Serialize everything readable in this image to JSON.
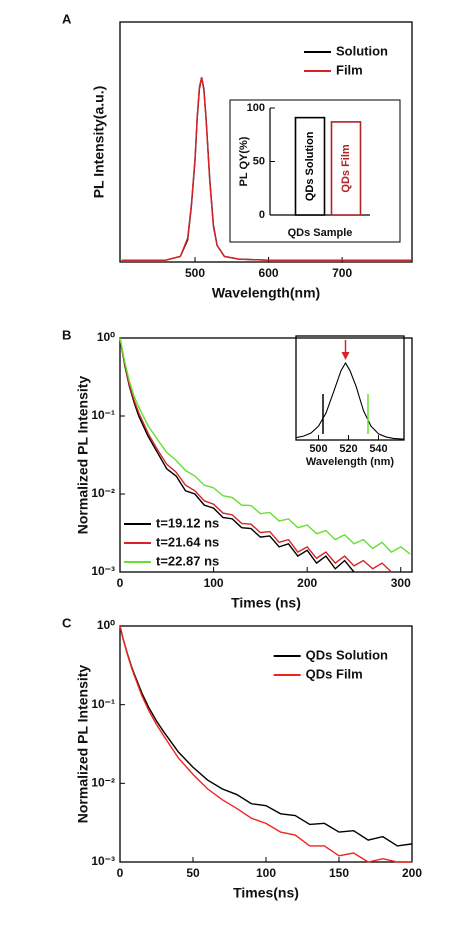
{
  "chart_data": [
    {
      "type": "line",
      "panel_label": "A",
      "xlabel": "Wavelength(nm)",
      "ylabel": "PL Intensity(a.u.)",
      "xlim": [
        398,
        795
      ],
      "xticks": [
        500,
        600,
        700
      ],
      "ylim": [
        0,
        1.3
      ],
      "legend": "upper right",
      "x": [
        400,
        460,
        480,
        490,
        495,
        500,
        503,
        506,
        509,
        512,
        515,
        520,
        525,
        530,
        540,
        560,
        600,
        700,
        795
      ],
      "series": [
        {
          "name": "Solution",
          "color": "#000000",
          "values": [
            0.01,
            0.01,
            0.03,
            0.12,
            0.3,
            0.55,
            0.78,
            0.94,
            1.0,
            0.94,
            0.78,
            0.45,
            0.2,
            0.09,
            0.03,
            0.015,
            0.01,
            0.01,
            0.01
          ]
        },
        {
          "name": "Film",
          "color": "#d8232a",
          "values": [
            0.01,
            0.01,
            0.03,
            0.13,
            0.31,
            0.56,
            0.79,
            0.95,
            1.0,
            0.93,
            0.77,
            0.44,
            0.19,
            0.09,
            0.03,
            0.015,
            0.01,
            0.01,
            0.01
          ]
        }
      ]
    },
    {
      "type": "bar",
      "xlabel": "QDs Sample",
      "ylabel": "PL QY(%)",
      "ylim": [
        0,
        100
      ],
      "yticks": [
        0,
        50,
        100
      ],
      "categories": [
        "QDs Solution",
        "QDs Film"
      ],
      "values": [
        91,
        87
      ],
      "colors": [
        "#000000",
        "#b0232a"
      ]
    },
    {
      "type": "line",
      "panel_label": "B",
      "xlabel": "Times (ns)",
      "ylabel": "Normalized PL Intensity",
      "log_y": true,
      "xlim": [
        0,
        312
      ],
      "xticks": [
        0,
        100,
        200,
        300
      ],
      "ylim": [
        0.001,
        1
      ],
      "yticks": [
        {
          "value": 0.001,
          "label": "10⁻³"
        },
        {
          "value": 0.01,
          "label": "10⁻²"
        },
        {
          "value": 0.1,
          "label": "10⁻¹"
        },
        {
          "value": 1,
          "label": "10⁰"
        }
      ],
      "legend": "lower left",
      "x": [
        0,
        5,
        10,
        15,
        20,
        30,
        40,
        50,
        60,
        70,
        80,
        90,
        100,
        110,
        120,
        130,
        140,
        150,
        160,
        170,
        180,
        190,
        200,
        210,
        220,
        230,
        240,
        250,
        260,
        270,
        280,
        290,
        300,
        310
      ],
      "series": [
        {
          "name": "t=19.12 ns",
          "color": "#000000",
          "values": [
            1,
            0.45,
            0.24,
            0.15,
            0.1,
            0.055,
            0.034,
            0.021,
            0.017,
            0.011,
            0.01,
            0.0072,
            0.0066,
            0.005,
            0.0048,
            0.0037,
            0.0036,
            0.0028,
            0.0029,
            0.0021,
            0.0023,
            0.0016,
            0.0019,
            0.0013,
            0.0016,
            0.0011,
            0.0014,
            0.001,
            null,
            null,
            null,
            null,
            null,
            null
          ]
        },
        {
          "name": "t=21.64 ns",
          "color": "#d8232a",
          "values": [
            1,
            0.47,
            0.25,
            0.16,
            0.11,
            0.06,
            0.037,
            0.024,
            0.019,
            0.013,
            0.011,
            0.0082,
            0.0074,
            0.0057,
            0.0054,
            0.0042,
            0.0041,
            0.0032,
            0.0033,
            0.0024,
            0.0026,
            0.0018,
            0.0021,
            0.0015,
            0.0018,
            0.0013,
            0.0016,
            0.0012,
            0.0014,
            0.0011,
            0.0013,
            0.001,
            null,
            null
          ]
        },
        {
          "name": "t=22.87 ns",
          "color": "#66e033",
          "values": [
            1,
            0.5,
            0.28,
            0.18,
            0.13,
            0.075,
            0.05,
            0.034,
            0.027,
            0.02,
            0.017,
            0.013,
            0.012,
            0.0095,
            0.009,
            0.0072,
            0.0071,
            0.0056,
            0.0058,
            0.0045,
            0.0048,
            0.0037,
            0.004,
            0.0031,
            0.0034,
            0.0026,
            0.003,
            0.0023,
            0.0026,
            0.002,
            0.0024,
            0.0018,
            0.0021,
            0.0017
          ]
        }
      ]
    },
    {
      "type": "line",
      "xlabel": "Wavelength (nm)",
      "xlim": [
        485,
        557
      ],
      "xticks": [
        500,
        520,
        540
      ],
      "ylim": [
        0,
        1.35
      ],
      "x": [
        485,
        490,
        495,
        500,
        505,
        510,
        515,
        518,
        521,
        525,
        530,
        535,
        540,
        545,
        550,
        557
      ],
      "series": [
        {
          "color": "#000000",
          "values": [
            0.03,
            0.05,
            0.09,
            0.18,
            0.35,
            0.62,
            0.9,
            1.0,
            0.9,
            0.7,
            0.38,
            0.18,
            0.08,
            0.04,
            0.02,
            0.01
          ]
        }
      ],
      "vlines": [
        {
          "x": 503,
          "color": "#000000"
        },
        {
          "x": 533,
          "color": "#66e033"
        }
      ],
      "arrow_x": 518,
      "arrow_color": "#d8232a"
    },
    {
      "type": "line",
      "panel_label": "C",
      "xlabel": "Times(ns)",
      "ylabel": "Normalized PL Intensity",
      "log_y": true,
      "xlim": [
        0,
        200
      ],
      "xticks": [
        0,
        50,
        100,
        150,
        200
      ],
      "ylim": [
        0.001,
        1
      ],
      "yticks": [
        {
          "value": 0.001,
          "label": "10⁻³"
        },
        {
          "value": 0.01,
          "label": "10⁻²"
        },
        {
          "value": 0.1,
          "label": "10⁻¹"
        },
        {
          "value": 1,
          "label": "10⁰"
        }
      ],
      "legend": "upper right",
      "x": [
        0,
        2,
        5,
        8,
        10,
        15,
        20,
        25,
        30,
        40,
        50,
        60,
        70,
        80,
        90,
        100,
        110,
        120,
        130,
        140,
        150,
        160,
        170,
        180,
        190,
        200
      ],
      "series": [
        {
          "name": "QDs Solution",
          "color": "#000000",
          "values": [
            1,
            0.7,
            0.45,
            0.3,
            0.24,
            0.14,
            0.09,
            0.062,
            0.045,
            0.025,
            0.016,
            0.011,
            0.0085,
            0.0072,
            0.0055,
            0.0052,
            0.0041,
            0.0039,
            0.003,
            0.0031,
            0.0024,
            0.0025,
            0.0019,
            0.0021,
            0.0016,
            0.0017
          ]
        },
        {
          "name": "QDs Film",
          "color": "#f0241c",
          "values": [
            1,
            0.7,
            0.44,
            0.29,
            0.23,
            0.13,
            0.082,
            0.056,
            0.04,
            0.021,
            0.013,
            0.0085,
            0.0062,
            0.0048,
            0.0036,
            0.0031,
            0.0024,
            0.0022,
            0.0016,
            0.0016,
            0.0012,
            0.0013,
            0.001,
            0.0011,
            0.001,
            0.001
          ]
        }
      ]
    }
  ]
}
